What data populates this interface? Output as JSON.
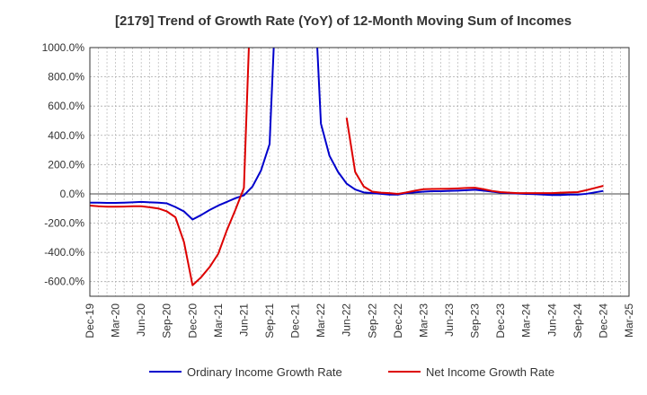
{
  "chart_data": {
    "type": "line",
    "title": "[2179]  Trend of Growth Rate (YoY) of 12-Month Moving Sum of Incomes",
    "xlabel": "",
    "ylabel": "",
    "ylim": [
      -700,
      1000
    ],
    "y_ticks": [
      1000,
      800,
      600,
      400,
      200,
      0,
      -200,
      -400,
      -600
    ],
    "y_tick_labels": [
      "1000.0%",
      "800.0%",
      "600.0%",
      "400.0%",
      "200.0%",
      "0.0%",
      "-200.0%",
      "-400.0%",
      "-600.0%"
    ],
    "x_tick_labels": [
      "Dec-19",
      "Mar-20",
      "Jun-20",
      "Sep-20",
      "Dec-20",
      "Mar-21",
      "Jun-21",
      "Sep-21",
      "Dec-21",
      "Mar-22",
      "Jun-22",
      "Sep-22",
      "Dec-22",
      "Mar-23",
      "Jun-23",
      "Sep-23",
      "Dec-23",
      "Mar-24",
      "Jun-24",
      "Sep-24",
      "Dec-24",
      "Mar-25"
    ],
    "x_start": "2019-12",
    "x_end": "2025-03",
    "grid": true,
    "legend_position": "bottom",
    "series": [
      {
        "name": "Ordinary Income Growth Rate",
        "color": "#0000cc",
        "points": [
          [
            "2019-12",
            -60
          ],
          [
            "2020-01",
            -60
          ],
          [
            "2020-02",
            -62
          ],
          [
            "2020-03",
            -62
          ],
          [
            "2020-04",
            -60
          ],
          [
            "2020-05",
            -58
          ],
          [
            "2020-06",
            -55
          ],
          [
            "2020-07",
            -58
          ],
          [
            "2020-08",
            -60
          ],
          [
            "2020-09",
            -65
          ],
          [
            "2020-10",
            -90
          ],
          [
            "2020-11",
            -120
          ],
          [
            "2020-12",
            -175
          ],
          [
            "2021-01",
            -145
          ],
          [
            "2021-02",
            -110
          ],
          [
            "2021-03",
            -80
          ],
          [
            "2021-04",
            -55
          ],
          [
            "2021-05",
            -30
          ],
          [
            "2021-06",
            -10
          ],
          [
            "2021-07",
            50
          ],
          [
            "2021-08",
            160
          ],
          [
            "2021-09",
            340
          ],
          [
            "2021-10",
            1700
          ],
          [
            "2022-02",
            1700
          ],
          [
            "2022-03",
            480
          ],
          [
            "2022-04",
            260
          ],
          [
            "2022-05",
            150
          ],
          [
            "2022-06",
            70
          ],
          [
            "2022-07",
            30
          ],
          [
            "2022-08",
            10
          ],
          [
            "2022-09",
            5
          ],
          [
            "2022-10",
            0
          ],
          [
            "2022-11",
            -5
          ],
          [
            "2022-12",
            -5
          ],
          [
            "2023-01",
            5
          ],
          [
            "2023-02",
            10
          ],
          [
            "2023-03",
            15
          ],
          [
            "2023-04",
            18
          ],
          [
            "2023-05",
            18
          ],
          [
            "2023-06",
            20
          ],
          [
            "2023-07",
            22
          ],
          [
            "2023-08",
            25
          ],
          [
            "2023-09",
            28
          ],
          [
            "2023-10",
            22
          ],
          [
            "2023-11",
            15
          ],
          [
            "2023-12",
            8
          ],
          [
            "2024-01",
            5
          ],
          [
            "2024-02",
            2
          ],
          [
            "2024-03",
            0
          ],
          [
            "2024-04",
            -2
          ],
          [
            "2024-05",
            -5
          ],
          [
            "2024-06",
            -8
          ],
          [
            "2024-07",
            -8
          ],
          [
            "2024-08",
            -5
          ],
          [
            "2024-09",
            -5
          ],
          [
            "2024-10",
            0
          ],
          [
            "2024-11",
            10
          ],
          [
            "2024-12",
            20
          ]
        ]
      },
      {
        "name": "Net Income Growth Rate",
        "color": "#dd0000",
        "points": [
          [
            "2019-12",
            -80
          ],
          [
            "2020-01",
            -85
          ],
          [
            "2020-02",
            -88
          ],
          [
            "2020-03",
            -88
          ],
          [
            "2020-04",
            -87
          ],
          [
            "2020-05",
            -85
          ],
          [
            "2020-06",
            -85
          ],
          [
            "2020-07",
            -92
          ],
          [
            "2020-08",
            -100
          ],
          [
            "2020-09",
            -120
          ],
          [
            "2020-10",
            -160
          ],
          [
            "2020-11",
            -330
          ],
          [
            "2020-12",
            -625
          ],
          [
            "2021-01",
            -570
          ],
          [
            "2021-02",
            -500
          ],
          [
            "2021-03",
            -410
          ],
          [
            "2021-04",
            -250
          ],
          [
            "2021-05",
            -110
          ],
          [
            "2021-06",
            40
          ],
          [
            "2021-07",
            1700
          ],
          null,
          [
            "2022-06",
            520
          ],
          [
            "2022-07",
            150
          ],
          [
            "2022-08",
            50
          ],
          [
            "2022-09",
            15
          ],
          [
            "2022-10",
            8
          ],
          [
            "2022-11",
            5
          ],
          [
            "2022-12",
            0
          ],
          [
            "2023-01",
            10
          ],
          [
            "2023-02",
            22
          ],
          [
            "2023-03",
            32
          ],
          [
            "2023-04",
            33
          ],
          [
            "2023-05",
            34
          ],
          [
            "2023-06",
            35
          ],
          [
            "2023-07",
            37
          ],
          [
            "2023-08",
            40
          ],
          [
            "2023-09",
            42
          ],
          [
            "2023-10",
            32
          ],
          [
            "2023-11",
            20
          ],
          [
            "2023-12",
            12
          ],
          [
            "2024-01",
            8
          ],
          [
            "2024-02",
            5
          ],
          [
            "2024-03",
            5
          ],
          [
            "2024-04",
            5
          ],
          [
            "2024-05",
            5
          ],
          [
            "2024-06",
            5
          ],
          [
            "2024-07",
            8
          ],
          [
            "2024-08",
            10
          ],
          [
            "2024-09",
            12
          ],
          [
            "2024-10",
            25
          ],
          [
            "2024-11",
            40
          ],
          [
            "2024-12",
            55
          ]
        ]
      }
    ]
  }
}
